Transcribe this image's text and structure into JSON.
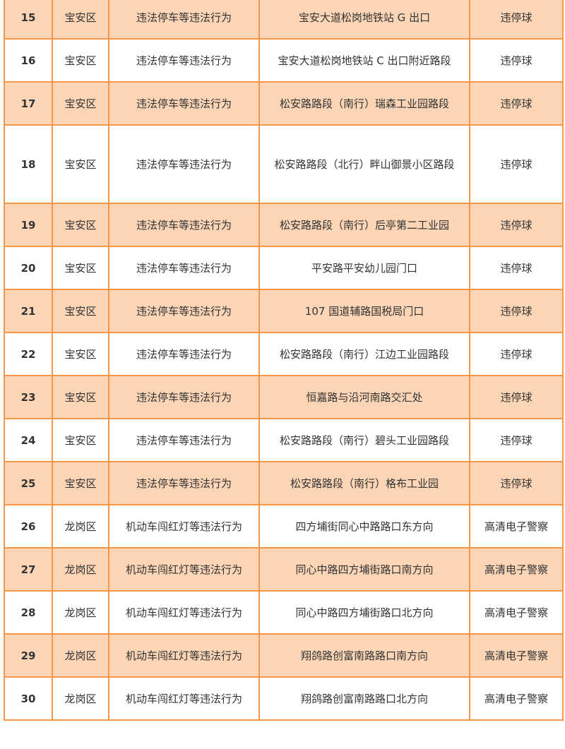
{
  "colors": {
    "border": "#f79646",
    "alt_row": "#fbd5b5"
  },
  "rows": [
    {
      "no": "15",
      "district": "宝安区",
      "violation": "违法停车等违法行为",
      "location": "宝安大道松岗地铁站 G 出口",
      "device": "违停球"
    },
    {
      "no": "16",
      "district": "宝安区",
      "violation": "违法停车等违法行为",
      "location": "宝安大道松岗地铁站 C 出口附近路段",
      "device": "违停球"
    },
    {
      "no": "17",
      "district": "宝安区",
      "violation": "违法停车等违法行为",
      "location": "松安路路段（南行）瑞森工业园路段",
      "device": "违停球"
    },
    {
      "no": "18",
      "district": "宝安区",
      "violation": "违法停车等违法行为",
      "location": "松安路路段（北行）畔山御景小区路段",
      "device": "违停球"
    },
    {
      "no": "19",
      "district": "宝安区",
      "violation": "违法停车等违法行为",
      "location": "松安路路段（南行）后亭第二工业园",
      "device": "违停球"
    },
    {
      "no": "20",
      "district": "宝安区",
      "violation": "违法停车等违法行为",
      "location": "平安路平安幼儿园门口",
      "device": "违停球"
    },
    {
      "no": "21",
      "district": "宝安区",
      "violation": "违法停车等违法行为",
      "location": "107 国道辅路国税局门口",
      "device": "违停球"
    },
    {
      "no": "22",
      "district": "宝安区",
      "violation": "违法停车等违法行为",
      "location": "松安路路段（南行）江边工业园路段",
      "device": "违停球"
    },
    {
      "no": "23",
      "district": "宝安区",
      "violation": "违法停车等违法行为",
      "location": "恒嘉路与沿河南路交汇处",
      "device": "违停球"
    },
    {
      "no": "24",
      "district": "宝安区",
      "violation": "违法停车等违法行为",
      "location": "松安路路段（南行）碧头工业园路段",
      "device": "违停球"
    },
    {
      "no": "25",
      "district": "宝安区",
      "violation": "违法停车等违法行为",
      "location": "松安路路段（南行）格布工业园",
      "device": "违停球"
    },
    {
      "no": "26",
      "district": "龙岗区",
      "violation": "机动车闯红灯等违法行为",
      "location": "四方埔街同心中路路口东方向",
      "device": "高清电子警察"
    },
    {
      "no": "27",
      "district": "龙岗区",
      "violation": "机动车闯红灯等违法行为",
      "location": "同心中路四方埔街路口南方向",
      "device": "高清电子警察"
    },
    {
      "no": "28",
      "district": "龙岗区",
      "violation": "机动车闯红灯等违法行为",
      "location": "同心中路四方埔街路口北方向",
      "device": "高清电子警察"
    },
    {
      "no": "29",
      "district": "龙岗区",
      "violation": "机动车闯红灯等违法行为",
      "location": "翔鸽路创富南路路口南方向",
      "device": "高清电子警察"
    },
    {
      "no": "30",
      "district": "龙岗区",
      "violation": "机动车闯红灯等违法行为",
      "location": "翔鸽路创富南路路口北方向",
      "device": "高清电子警察"
    }
  ]
}
